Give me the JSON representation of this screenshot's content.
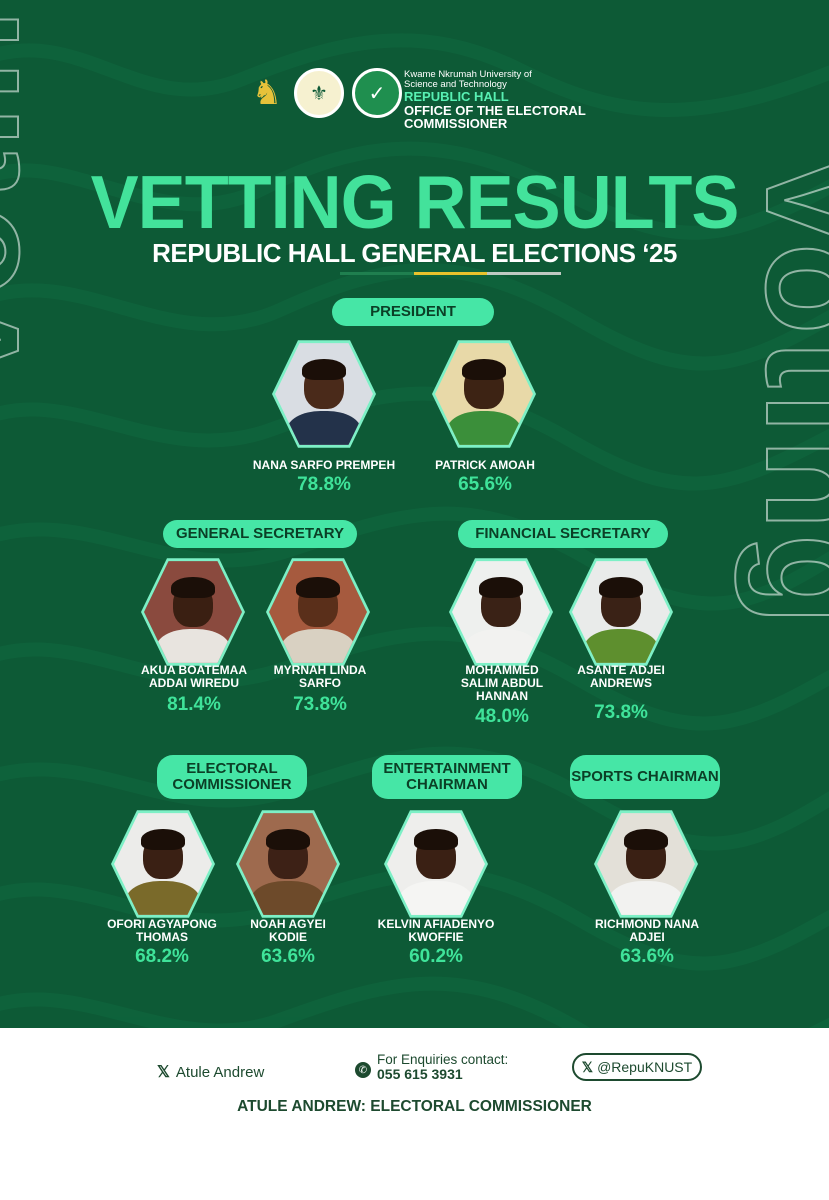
{
  "institution": {
    "university": "Kwame Nkrumah University of Science and Technology",
    "hall": "REPUBLIC HALL",
    "office": "OFFICE OF THE ELECTORAL COMMISSIONER"
  },
  "title": "VETTING RESULTS",
  "subtitle": "REPUBLIC HALL GENERAL ELECTIONS ‘25",
  "stripe_colors": [
    "#0d5a36",
    "#1f7f4f",
    "#e8c22c",
    "#bfc9c2"
  ],
  "theme": {
    "background": "#0d5a36",
    "accent": "#46e6a6",
    "percent": "#3fe39a"
  },
  "positions": {
    "president": {
      "label": "PRESIDENT",
      "candidates": [
        {
          "name": "NANA SARFO PREMPEH",
          "percent": "78.8%"
        },
        {
          "name": "PATRICK AMOAH",
          "percent": "65.6%"
        }
      ]
    },
    "general_secretary": {
      "label": "GENERAL SECRETARY",
      "candidates": [
        {
          "name": "AKUA BOATEMAA ADDAI WIREDU",
          "percent": "81.4%"
        },
        {
          "name": "MYRNAH LINDA SARFO",
          "percent": "73.8%"
        }
      ]
    },
    "financial_secretary": {
      "label": "FINANCIAL SECRETARY",
      "candidates": [
        {
          "name": "MOHAMMED SALIM ABDUL HANNAN",
          "percent": "48.0%"
        },
        {
          "name": "ASANTE ADJEI ANDREWS",
          "percent": "73.8%"
        }
      ]
    },
    "electoral_commissioner": {
      "label": "ELECTORAL COMMISSIONER",
      "candidates": [
        {
          "name": "OFORI AGYAPONG THOMAS",
          "percent": "68.2%"
        },
        {
          "name": "NOAH AGYEI KODIE",
          "percent": "63.6%"
        }
      ]
    },
    "entertainment_chairman": {
      "label": "ENTERTAINMENT CHAIRMAN",
      "candidates": [
        {
          "name": "KELVIN AFIADENYO KWOFFIE",
          "percent": "60.2%"
        }
      ]
    },
    "sports_chairman": {
      "label": "SPORTS CHAIRMAN",
      "candidates": [
        {
          "name": "RICHMOND NANA ADJEI",
          "percent": "63.6%"
        }
      ]
    }
  },
  "footer": {
    "x_handle_name": "Atule Andrew",
    "enquiries_label": "For Enquiries contact:",
    "phone": "055 615 3931",
    "x_account": "@RepuKNUST",
    "signature": "ATULE ANDREW: ELECTORAL COMMISSIONER"
  },
  "icons": {
    "x": "x-logo-icon",
    "whatsapp": "whatsapp-icon"
  }
}
